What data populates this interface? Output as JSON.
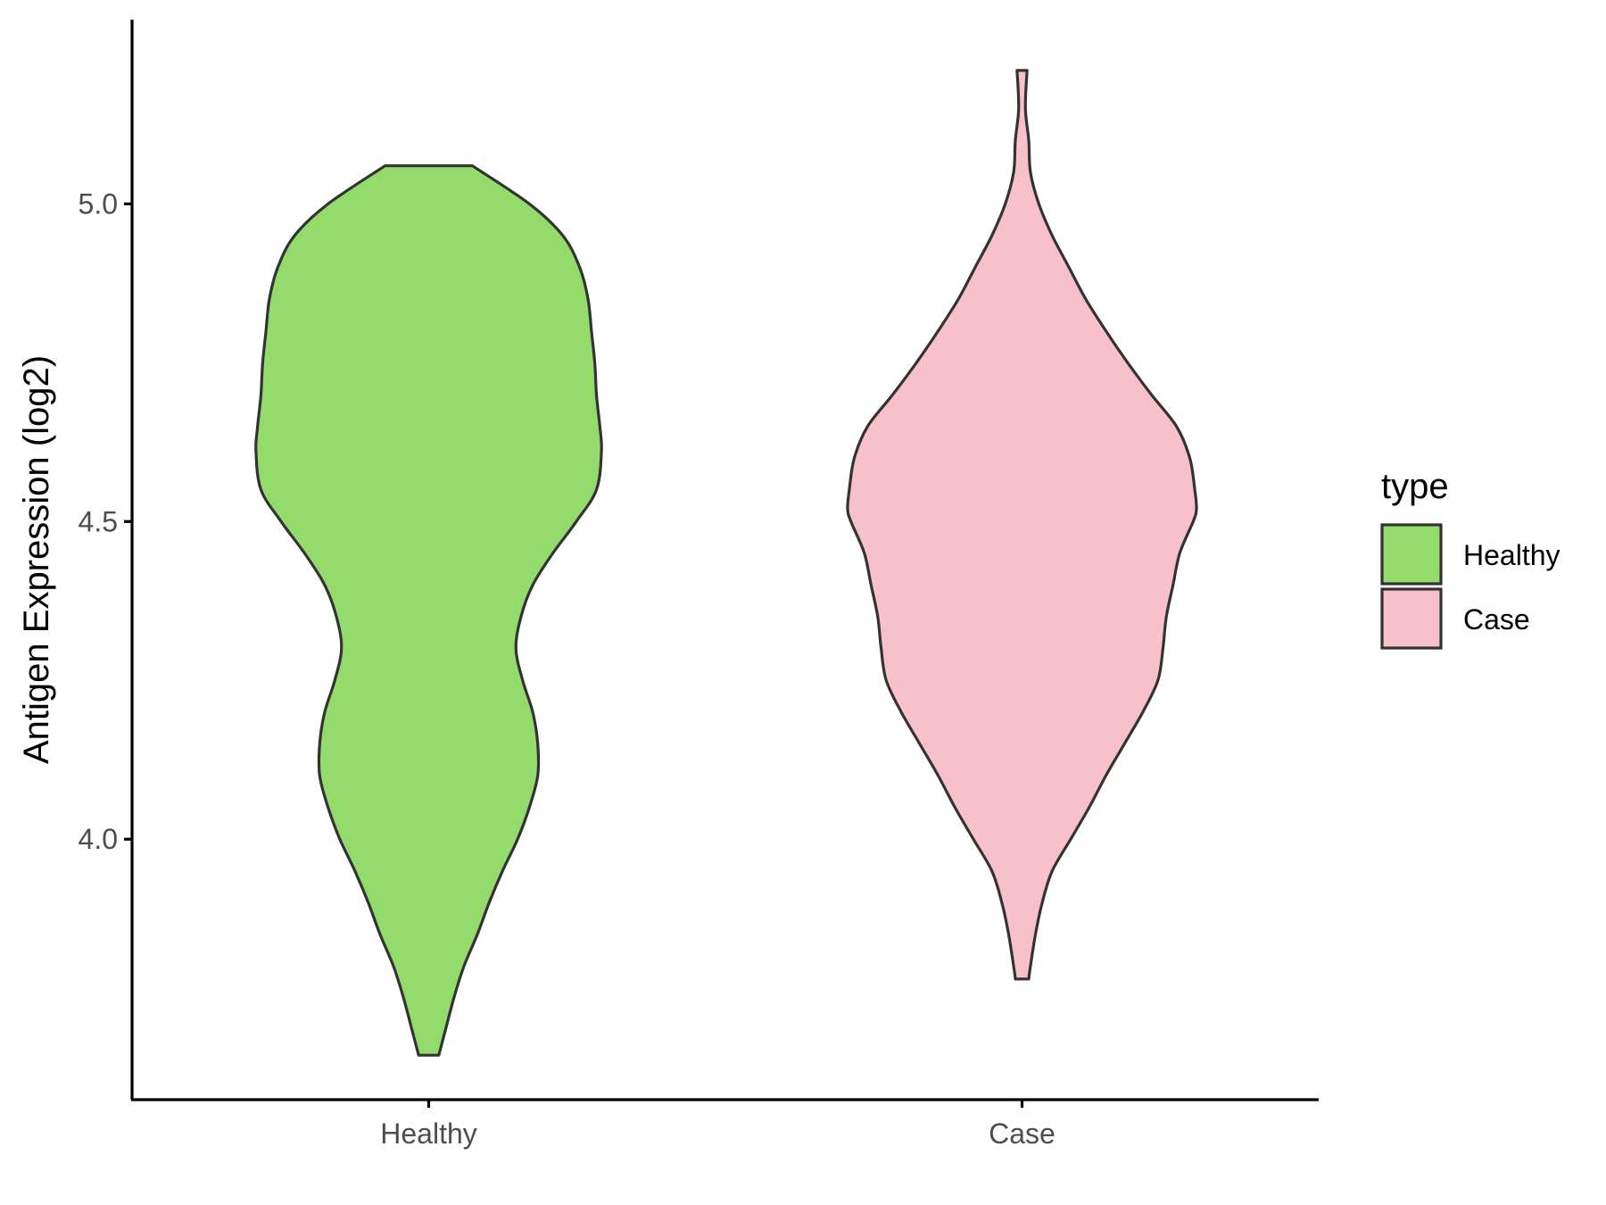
{
  "chart_data": {
    "type": "violin",
    "ylabel": "Antigen Expression (log2)",
    "xlabel": "",
    "categories": [
      "Healthy",
      "Case"
    ],
    "y_ticks": [
      4.0,
      4.5,
      5.0
    ],
    "y_tick_labels": [
      "4.0",
      "4.5",
      "5.0"
    ],
    "ylim": [
      3.59,
      5.29
    ],
    "grid": false,
    "legend": {
      "title": "type",
      "position": "right",
      "entries": [
        "Healthy",
        "Case"
      ]
    },
    "series": [
      {
        "name": "Healthy",
        "color": "#93dc6b",
        "min": 3.66,
        "max": 5.06,
        "profile": [
          [
            5.06,
            0.26
          ],
          [
            5.0,
            0.6
          ],
          [
            4.95,
            0.8
          ],
          [
            4.9,
            0.9
          ],
          [
            4.85,
            0.95
          ],
          [
            4.8,
            0.97
          ],
          [
            4.75,
            0.99
          ],
          [
            4.7,
            1.0
          ],
          [
            4.65,
            1.02
          ],
          [
            4.61,
            1.03
          ],
          [
            4.55,
            1.0
          ],
          [
            4.5,
            0.88
          ],
          [
            4.45,
            0.74
          ],
          [
            4.4,
            0.62
          ],
          [
            4.35,
            0.55
          ],
          [
            4.3,
            0.52
          ],
          [
            4.25,
            0.56
          ],
          [
            4.2,
            0.62
          ],
          [
            4.15,
            0.65
          ],
          [
            4.1,
            0.65
          ],
          [
            4.05,
            0.6
          ],
          [
            4.0,
            0.53
          ],
          [
            3.95,
            0.44
          ],
          [
            3.9,
            0.36
          ],
          [
            3.85,
            0.29
          ],
          [
            3.8,
            0.21
          ],
          [
            3.75,
            0.15
          ],
          [
            3.7,
            0.1
          ],
          [
            3.66,
            0.06
          ]
        ]
      },
      {
        "name": "Case",
        "color": "#f8c0cb",
        "min": 3.78,
        "max": 5.21,
        "profile": [
          [
            5.21,
            0.03
          ],
          [
            5.15,
            0.02
          ],
          [
            5.1,
            0.04
          ],
          [
            5.05,
            0.05
          ],
          [
            5.0,
            0.1
          ],
          [
            4.95,
            0.18
          ],
          [
            4.9,
            0.28
          ],
          [
            4.85,
            0.38
          ],
          [
            4.8,
            0.5
          ],
          [
            4.75,
            0.63
          ],
          [
            4.7,
            0.77
          ],
          [
            4.65,
            0.92
          ],
          [
            4.6,
            1.0
          ],
          [
            4.55,
            1.03
          ],
          [
            4.52,
            1.04
          ],
          [
            4.5,
            1.02
          ],
          [
            4.45,
            0.94
          ],
          [
            4.4,
            0.9
          ],
          [
            4.35,
            0.86
          ],
          [
            4.3,
            0.84
          ],
          [
            4.25,
            0.81
          ],
          [
            4.2,
            0.72
          ],
          [
            4.15,
            0.61
          ],
          [
            4.1,
            0.5
          ],
          [
            4.05,
            0.4
          ],
          [
            4.0,
            0.29
          ],
          [
            3.95,
            0.18
          ],
          [
            3.9,
            0.12
          ],
          [
            3.85,
            0.08
          ],
          [
            3.8,
            0.05
          ],
          [
            3.78,
            0.04
          ]
        ]
      }
    ]
  }
}
